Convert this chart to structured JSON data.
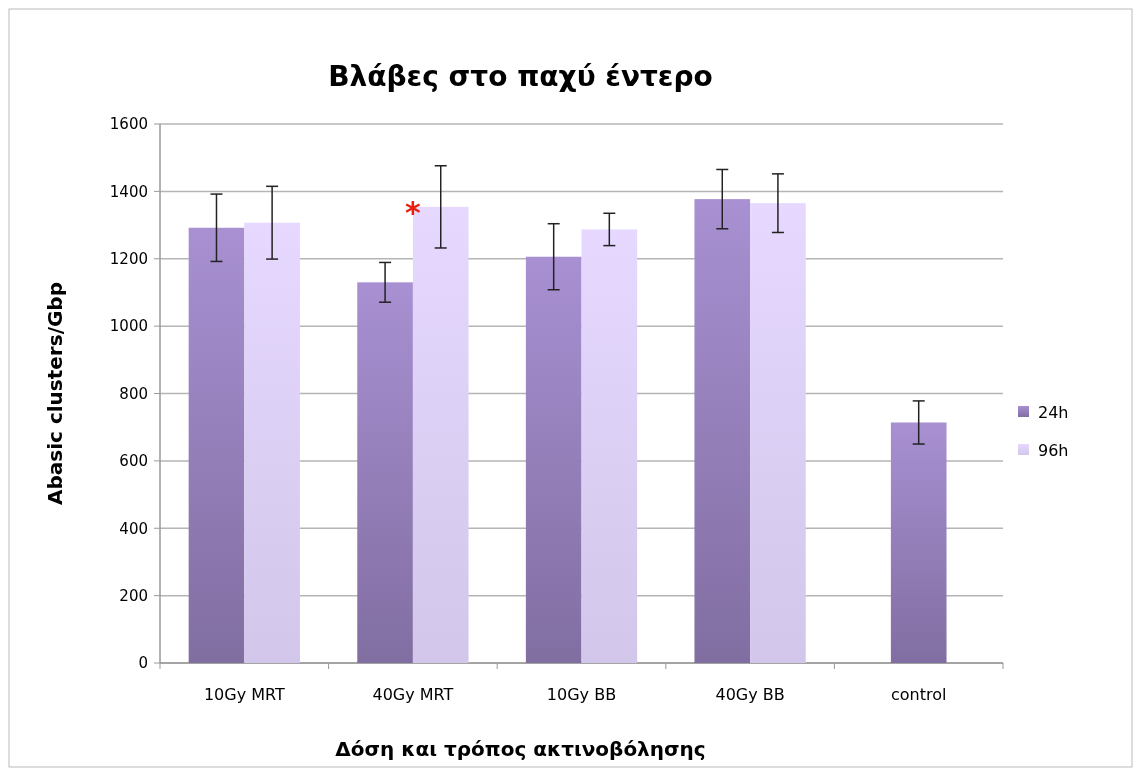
{
  "chart_data": {
    "type": "bar",
    "title": "Βλάβες στο παχύ έντερο",
    "xlabel": "Δόση και τρόπος ακτινοβόλησης",
    "ylabel": "Abasic clusters/Gbp",
    "categories": [
      "10Gy MRT",
      "40Gy MRT",
      "10Gy BB",
      "40Gy BB",
      "control"
    ],
    "series": [
      {
        "name": "24h",
        "color": "#9a84c0",
        "values": [
          1292,
          1130,
          1206,
          1377,
          714
        ],
        "errors": [
          100,
          59,
          98,
          88,
          64
        ]
      },
      {
        "name": "96h",
        "color": "#d2c6ea",
        "values": [
          1307,
          1354,
          1287,
          1365,
          null
        ],
        "errors": [
          108,
          122,
          48,
          87,
          null
        ]
      }
    ],
    "annotations": [
      "*"
    ],
    "ylim": [
      0,
      1600
    ],
    "yticks": [
      0,
      200,
      400,
      600,
      800,
      1000,
      1200,
      1400,
      1600
    ],
    "grid": "y",
    "legend": "right"
  }
}
